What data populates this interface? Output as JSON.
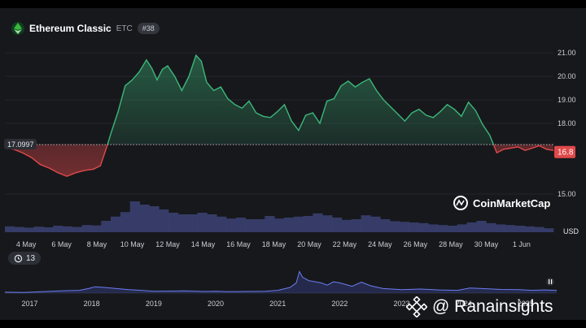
{
  "header": {
    "coin_name": "Ethereum Classic",
    "symbol": "ETC",
    "rank": "#38",
    "icon": "ethereum-classic-icon"
  },
  "brand": "CoinMarketCap",
  "watermark": "@ Ranainsights",
  "history_badge": "13",
  "currency_label": "USD",
  "colors": {
    "up": "#3cb77a",
    "down": "#e0494a",
    "volume": "#3a4070",
    "background": "#17181c"
  },
  "chart_data": [
    {
      "type": "area",
      "baseline": {
        "label": "17.0997",
        "value": 17.1
      },
      "current_price": {
        "label": "16.8",
        "value": 16.8
      },
      "ylim": [
        14.2,
        21.8
      ],
      "y_ticks": [
        "21.00",
        "20.00",
        "19.00",
        "18.00",
        "16.8",
        "15.00"
      ],
      "x_ticks": [
        "4 May",
        "6 May",
        "8 May",
        "10 May",
        "12 May",
        "14 May",
        "16 May",
        "18 May",
        "20 May",
        "22 May",
        "24 May",
        "26 May",
        "28 May",
        "30 May",
        "1 Jun"
      ],
      "x_tick_days": [
        4,
        6,
        8,
        10,
        12,
        14,
        16,
        18,
        20,
        22,
        24,
        26,
        28,
        30,
        32
      ],
      "xlim": [
        2.8,
        33.8
      ],
      "series": [
        {
          "x": [
            2.8,
            3.3,
            3.8,
            4.3,
            4.8,
            5.3,
            5.8,
            6.3,
            6.8,
            7.3,
            7.8,
            8.2,
            8.6,
            8.8,
            9.2,
            9.6,
            10.0,
            10.4,
            10.8,
            11.1,
            11.4,
            11.7,
            12.0,
            12.4,
            12.8,
            13.2,
            13.6,
            13.9,
            14.2,
            14.6,
            15.0,
            15.4,
            15.8,
            16.2,
            16.6,
            17.0,
            17.4,
            17.8,
            18.2,
            18.6,
            19.0,
            19.4,
            19.8,
            20.2,
            20.6,
            21.0,
            21.4,
            21.8,
            22.2,
            22.6,
            23.0,
            23.4,
            23.8,
            24.2,
            24.6,
            25.0,
            25.4,
            25.8,
            26.2,
            26.6,
            27.0,
            27.4,
            27.8,
            28.2,
            28.6,
            29.0,
            29.4,
            29.8,
            30.2,
            30.6,
            31.0,
            31.4,
            31.8,
            32.2,
            32.6,
            33.0,
            33.4,
            33.8
          ],
          "y": [
            16.95,
            16.9,
            16.75,
            16.55,
            16.25,
            16.1,
            15.9,
            15.75,
            15.9,
            16.0,
            16.05,
            16.2,
            17.1,
            17.6,
            18.5,
            19.6,
            19.85,
            20.2,
            20.7,
            20.35,
            19.85,
            20.3,
            20.45,
            20.0,
            19.4,
            20.0,
            20.9,
            20.65,
            19.75,
            19.4,
            19.55,
            19.05,
            18.8,
            18.65,
            18.95,
            18.45,
            18.3,
            18.25,
            18.5,
            18.8,
            18.1,
            17.7,
            18.35,
            18.45,
            18.0,
            18.95,
            19.05,
            19.6,
            19.8,
            19.55,
            19.75,
            19.9,
            19.4,
            19.0,
            18.7,
            18.4,
            18.1,
            18.45,
            18.6,
            18.35,
            18.25,
            18.5,
            18.8,
            18.6,
            18.3,
            18.9,
            18.55,
            17.95,
            17.5,
            16.75,
            16.9,
            16.95,
            17.0,
            16.85,
            16.95,
            17.05,
            16.9,
            16.85
          ]
        }
      ],
      "volume": [
        0.18,
        0.16,
        0.14,
        0.17,
        0.15,
        0.2,
        0.18,
        0.16,
        0.22,
        0.21,
        0.35,
        0.48,
        0.62,
        0.95,
        0.85,
        0.8,
        0.7,
        0.6,
        0.55,
        0.55,
        0.6,
        0.55,
        0.48,
        0.42,
        0.45,
        0.4,
        0.4,
        0.5,
        0.42,
        0.45,
        0.48,
        0.5,
        0.58,
        0.52,
        0.45,
        0.38,
        0.4,
        0.52,
        0.48,
        0.4,
        0.34,
        0.32,
        0.3,
        0.28,
        0.24,
        0.22,
        0.2,
        0.24,
        0.3,
        0.35,
        0.28,
        0.24,
        0.22,
        0.2,
        0.18,
        0.16,
        0.12
      ]
    },
    {
      "type": "line",
      "x_ticks": [
        "2017",
        "2018",
        "2019",
        "2020",
        "2021",
        "2022",
        "2023",
        "2024",
        "2025"
      ],
      "x_tick_years": [
        2017,
        2018,
        2019,
        2020,
        2021,
        2022,
        2023,
        2024,
        2025
      ],
      "xlim": [
        2016.6,
        2025.5
      ],
      "series": [
        {
          "x": [
            2016.6,
            2016.9,
            2017.2,
            2017.5,
            2017.8,
            2017.95,
            2018.05,
            2018.2,
            2018.4,
            2018.6,
            2018.8,
            2019.0,
            2019.3,
            2019.5,
            2019.8,
            2020.0,
            2020.2,
            2020.5,
            2020.8,
            2021.0,
            2021.2,
            2021.3,
            2021.35,
            2021.4,
            2021.5,
            2021.6,
            2021.7,
            2021.8,
            2021.9,
            2022.0,
            2022.2,
            2022.35,
            2022.5,
            2022.7,
            2023.0,
            2023.3,
            2023.6,
            2023.9,
            2024.1,
            2024.3,
            2024.6,
            2024.9,
            2025.1,
            2025.3,
            2025.5
          ],
          "y": [
            0.04,
            0.03,
            0.06,
            0.1,
            0.12,
            0.2,
            0.28,
            0.25,
            0.2,
            0.15,
            0.12,
            0.08,
            0.09,
            0.1,
            0.07,
            0.08,
            0.06,
            0.07,
            0.08,
            0.12,
            0.25,
            0.45,
            0.95,
            0.7,
            0.55,
            0.5,
            0.45,
            0.35,
            0.5,
            0.45,
            0.3,
            0.48,
            0.32,
            0.2,
            0.15,
            0.18,
            0.14,
            0.12,
            0.22,
            0.2,
            0.16,
            0.15,
            0.12,
            0.14,
            0.12
          ]
        }
      ]
    }
  ]
}
